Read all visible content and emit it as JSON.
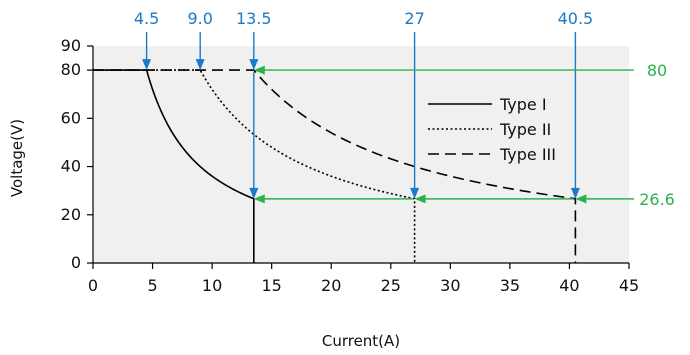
{
  "chart_data": {
    "type": "line",
    "xlabel": "Current(A)",
    "ylabel": "Voltage(V)",
    "xlim": [
      0,
      45
    ],
    "ylim": [
      0,
      90
    ],
    "x_ticks": [
      0,
      5,
      10,
      15,
      20,
      25,
      30,
      35,
      40,
      45
    ],
    "y_ticks": [
      0,
      20,
      40,
      60,
      80,
      90
    ],
    "grid": false,
    "legend_position": "right",
    "background": "#f0f0f0",
    "series": [
      {
        "name": "Type I",
        "style": "solid",
        "v_max": 80,
        "i_knee": 4.5,
        "i_max": 13.5,
        "v_at_i_max": 26.6
      },
      {
        "name": "Type II",
        "style": "dotted",
        "v_max": 80,
        "i_knee": 9.0,
        "i_max": 27,
        "v_at_i_max": 26.6
      },
      {
        "name": "Type III",
        "style": "dashed",
        "v_max": 80,
        "i_knee": 13.5,
        "i_max": 40.5,
        "v_at_i_max": 26.6
      }
    ],
    "current_annotations": [
      {
        "label": "4.5",
        "x": 4.5,
        "y": 80
      },
      {
        "label": "9.0",
        "x": 9.0,
        "y": 80
      },
      {
        "label": "13.5",
        "x": 13.5,
        "y": 80
      },
      {
        "label": "27",
        "x": 27,
        "y": 26.6
      },
      {
        "label": "40.5",
        "x": 40.5,
        "y": 26.6
      }
    ],
    "extra_arrows": [
      {
        "x": 13.5,
        "from_y": 80,
        "to_y": 26.6
      }
    ],
    "voltage_annotations": [
      {
        "label": "80",
        "y": 80,
        "targets_x": [
          13.5
        ]
      },
      {
        "label": "26.6",
        "y": 26.6,
        "targets_x": [
          13.5,
          27,
          40.5
        ]
      }
    ],
    "colors": {
      "current_annotation": "#1a7ac8",
      "voltage_annotation": "#2bb24c",
      "line": "#000000"
    }
  }
}
